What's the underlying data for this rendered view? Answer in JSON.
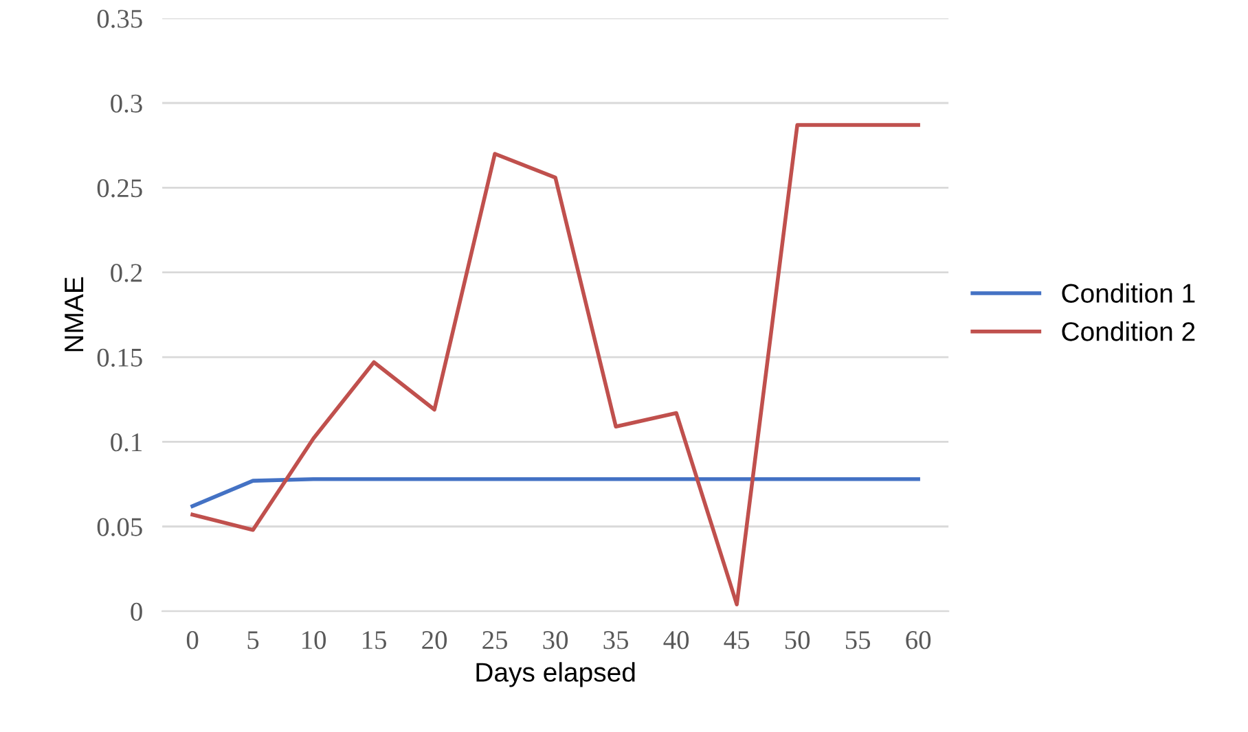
{
  "chart_data": {
    "type": "line",
    "xlabel": "Days elapsed",
    "ylabel": "NMAE",
    "categories": [
      "0",
      "5",
      "10",
      "15",
      "20",
      "25",
      "30",
      "35",
      "40",
      "45",
      "50",
      "55",
      "60"
    ],
    "series": [
      {
        "name": "Condition 1",
        "color": "#4472c4",
        "values": [
          0.062,
          0.077,
          0.078,
          0.078,
          0.078,
          0.078,
          0.078,
          0.078,
          0.078,
          0.078,
          0.078,
          0.078,
          0.078
        ]
      },
      {
        "name": "Condition 2",
        "color": "#c0504d",
        "values": [
          0.057,
          0.048,
          0.102,
          0.147,
          0.119,
          0.27,
          0.256,
          0.109,
          0.117,
          0.004,
          0.287,
          0.287,
          0.287
        ]
      }
    ],
    "ylim": [
      0,
      0.35
    ],
    "yticks": [
      0,
      0.05,
      0.1,
      0.15,
      0.2,
      0.25,
      0.3,
      0.35
    ],
    "grid": "y",
    "legend": "right",
    "marker": "none",
    "line_style": "solid"
  }
}
